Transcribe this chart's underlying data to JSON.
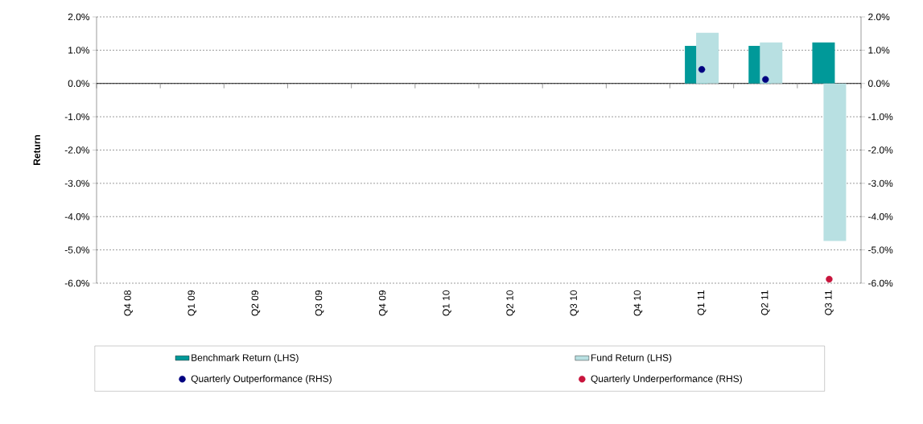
{
  "chart_data": {
    "type": "bar",
    "ylabel": "Return",
    "categories": [
      "Q4 08",
      "Q1 09",
      "Q2 09",
      "Q3 09",
      "Q4 09",
      "Q1 10",
      "Q2 10",
      "Q3 10",
      "Q4 10",
      "Q1 11",
      "Q2 11",
      "Q3 11"
    ],
    "series": [
      {
        "name": "Benchmark Return (LHS)",
        "color": "#009999",
        "values": [
          null,
          null,
          null,
          null,
          null,
          null,
          null,
          null,
          null,
          1.13,
          1.13,
          1.23
        ]
      },
      {
        "name": "Fund Return (LHS)",
        "color": "#b8e0e2",
        "values": [
          null,
          null,
          null,
          null,
          null,
          null,
          null,
          null,
          null,
          1.52,
          1.23,
          -4.73
        ]
      },
      {
        "name": "Quarterly Outperformance (RHS)",
        "type": "scatter",
        "axis": "y2",
        "color": "#000080",
        "values": [
          null,
          null,
          null,
          null,
          null,
          null,
          null,
          null,
          null,
          0.42,
          0.12,
          null
        ]
      },
      {
        "name": "Quarterly Underperformance (RHS)",
        "type": "scatter",
        "axis": "y2",
        "color": "#c8143c",
        "values": [
          null,
          null,
          null,
          null,
          null,
          null,
          null,
          null,
          null,
          null,
          null,
          -5.88
        ]
      }
    ],
    "ylim": [
      -6,
      2
    ],
    "yticks": [
      {
        "value": -6,
        "label": "-6.0%"
      },
      {
        "value": -5,
        "label": "-5.0%"
      },
      {
        "value": -4,
        "label": "-4.0%"
      },
      {
        "value": -3,
        "label": "-3.0%"
      },
      {
        "value": -2,
        "label": "-2.0%"
      },
      {
        "value": -1,
        "label": "-1.0%"
      },
      {
        "value": 0,
        "label": "0.0%"
      },
      {
        "value": 1,
        "label": "1.0%"
      },
      {
        "value": 2,
        "label": "2.0%"
      }
    ],
    "y2lim": [
      -6,
      2
    ],
    "y2ticks": [
      {
        "value": -6,
        "label": "-6.0%"
      },
      {
        "value": -5,
        "label": "-5.0%"
      },
      {
        "value": -4,
        "label": "-4.0%"
      },
      {
        "value": -3,
        "label": "-3.0%"
      },
      {
        "value": -2,
        "label": "-2.0%"
      },
      {
        "value": -1,
        "label": "-1.0%"
      },
      {
        "value": 0,
        "label": "0.0%"
      },
      {
        "value": 1,
        "label": "1.0%"
      },
      {
        "value": 2,
        "label": "2.0%"
      }
    ],
    "grid": "y",
    "legend": "bottom",
    "marker": "circle"
  }
}
